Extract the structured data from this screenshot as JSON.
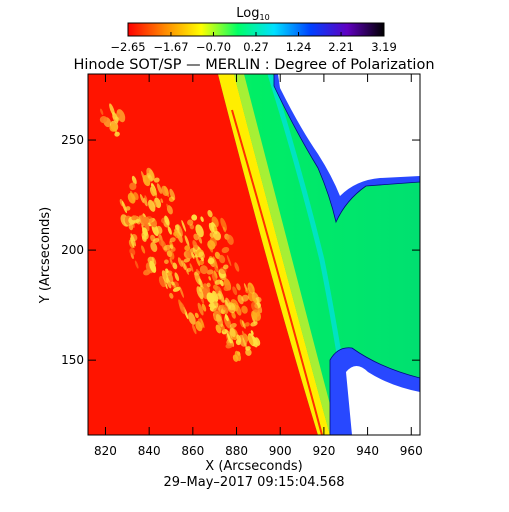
{
  "chart_data": {
    "type": "heatmap",
    "title": "Hinode SOT/SP — MERLIN : Degree of Polarization",
    "subtitle": "29–May–2017 09:15:04.568",
    "xlabel": "X (Arcseconds)",
    "ylabel": "Y (Arcseconds)",
    "xlim": [
      812,
      964
    ],
    "ylim": [
      116,
      280
    ],
    "x_ticks": [
      "820",
      "840",
      "860",
      "880",
      "900",
      "920",
      "940",
      "960"
    ],
    "x_tick_values": [
      820,
      840,
      860,
      880,
      900,
      920,
      940,
      960
    ],
    "y_ticks": [
      "150",
      "200",
      "250"
    ],
    "y_tick_values": [
      150,
      200,
      250
    ],
    "colorbar": {
      "label_base": "Log",
      "label_sub": "10",
      "min": -2.65,
      "max": 3.19,
      "tick_labels": [
        "−2.65",
        "−1.67",
        "−0.70",
        "0.27",
        "1.24",
        "2.21",
        "3.19"
      ],
      "tick_values": [
        -2.65,
        -1.67,
        -0.7,
        0.27,
        1.24,
        2.21,
        3.19
      ],
      "colors": [
        "#ff0000",
        "#ff8800",
        "#ffff00",
        "#00ff66",
        "#00e0ff",
        "#0040ff",
        "#6000c0",
        "#000000"
      ]
    },
    "regions": [
      {
        "name": "disk",
        "color": "#ff1400"
      },
      {
        "name": "bright plage patches",
        "color": "#ffd020"
      },
      {
        "name": "limb band",
        "color": "#ffee00"
      },
      {
        "name": "off-limb",
        "color": "#00ee66"
      },
      {
        "name": "noise fringe",
        "color": "#2040ff"
      },
      {
        "name": "no data",
        "color": "#ffffff"
      }
    ]
  }
}
